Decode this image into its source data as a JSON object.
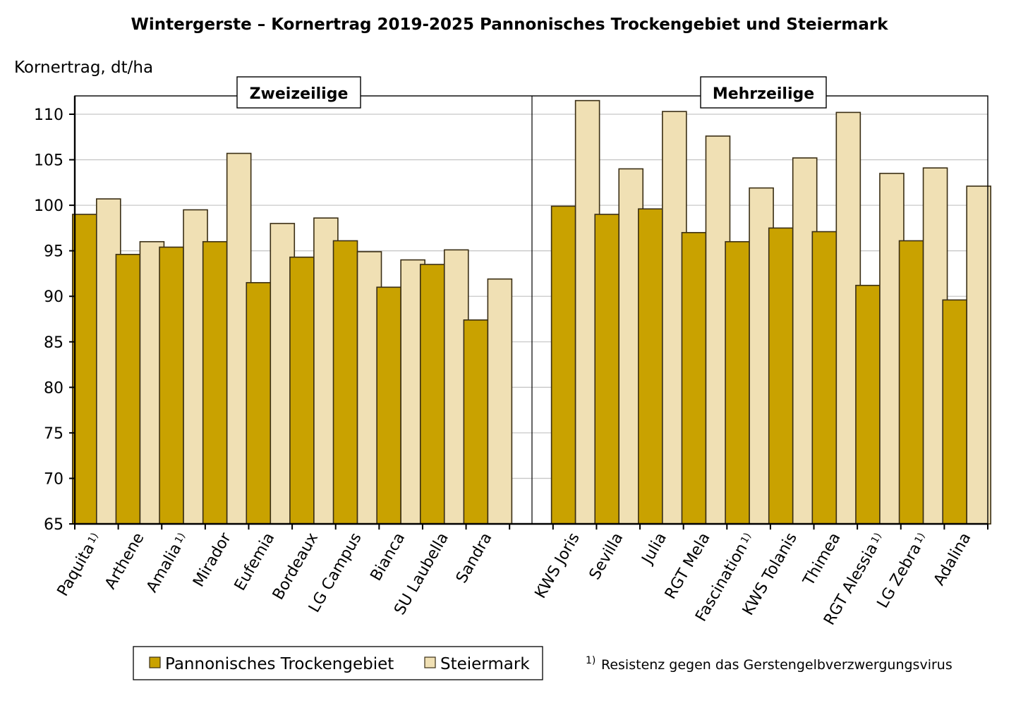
{
  "chart_data": {
    "type": "bar",
    "title": "Wintergerste – Kornertrag 2019-2025 Pannonisches Trockengebiet und Steiermark",
    "ylabel": "Kornertrag, dt/ha",
    "xlabel": "",
    "ylim": [
      65,
      112
    ],
    "yticks": [
      65,
      70,
      75,
      80,
      85,
      90,
      95,
      100,
      105,
      110
    ],
    "grid": true,
    "legend_position": "bottom-left",
    "colors": {
      "Pannonisches Trockengebiet": "#c9a200",
      "Steiermark": "#f0e0b4",
      "outline": "#3a2e14",
      "grid": "#c8c8c8"
    },
    "groups": [
      {
        "label": "Zweizeilige",
        "categories": [
          {
            "name": "Paquita",
            "mark": "1)"
          },
          {
            "name": "Arthene",
            "mark": ""
          },
          {
            "name": "Amalia",
            "mark": "1)"
          },
          {
            "name": "Mirador",
            "mark": ""
          },
          {
            "name": "Eufemia",
            "mark": ""
          },
          {
            "name": "Bordeaux",
            "mark": ""
          },
          {
            "name": "LG Campus",
            "mark": ""
          },
          {
            "name": "Bianca",
            "mark": ""
          },
          {
            "name": "SU Laubella",
            "mark": ""
          },
          {
            "name": "Sandra",
            "mark": ""
          }
        ],
        "series": [
          {
            "name": "Pannonisches Trockengebiet",
            "values": [
              99.0,
              94.6,
              95.4,
              96.0,
              91.5,
              94.3,
              96.1,
              91.0,
              93.5,
              87.4
            ]
          },
          {
            "name": "Steiermark",
            "values": [
              100.7,
              96.0,
              99.5,
              105.7,
              98.0,
              98.6,
              94.9,
              94.0,
              95.1,
              91.9
            ]
          }
        ]
      },
      {
        "label": "Mehrzeilige",
        "categories": [
          {
            "name": "KWS Joris",
            "mark": ""
          },
          {
            "name": "Sevilla",
            "mark": ""
          },
          {
            "name": "Julia",
            "mark": ""
          },
          {
            "name": "RGT Mela",
            "mark": ""
          },
          {
            "name": "Fascination",
            "mark": "1)"
          },
          {
            "name": "KWS Tolanis",
            "mark": ""
          },
          {
            "name": "Thimea",
            "mark": ""
          },
          {
            "name": "RGT Alessia",
            "mark": "1)"
          },
          {
            "name": "LG Zebra",
            "mark": "1)"
          },
          {
            "name": "Adalina",
            "mark": ""
          }
        ],
        "series": [
          {
            "name": "Pannonisches Trockengebiet",
            "values": [
              99.9,
              99.0,
              99.6,
              97.0,
              96.0,
              97.5,
              97.1,
              91.2,
              96.1,
              89.6
            ]
          },
          {
            "name": "Steiermark",
            "values": [
              111.5,
              104.0,
              110.3,
              107.6,
              101.9,
              105.2,
              110.2,
              103.5,
              104.1,
              102.1
            ]
          }
        ]
      }
    ],
    "legend": [
      "Pannonisches Trockengebiet",
      "Steiermark"
    ],
    "footnote": {
      "mark": "1)",
      "text": "Resistenz gegen das Gerstengelbverzwergungsvirus"
    }
  }
}
